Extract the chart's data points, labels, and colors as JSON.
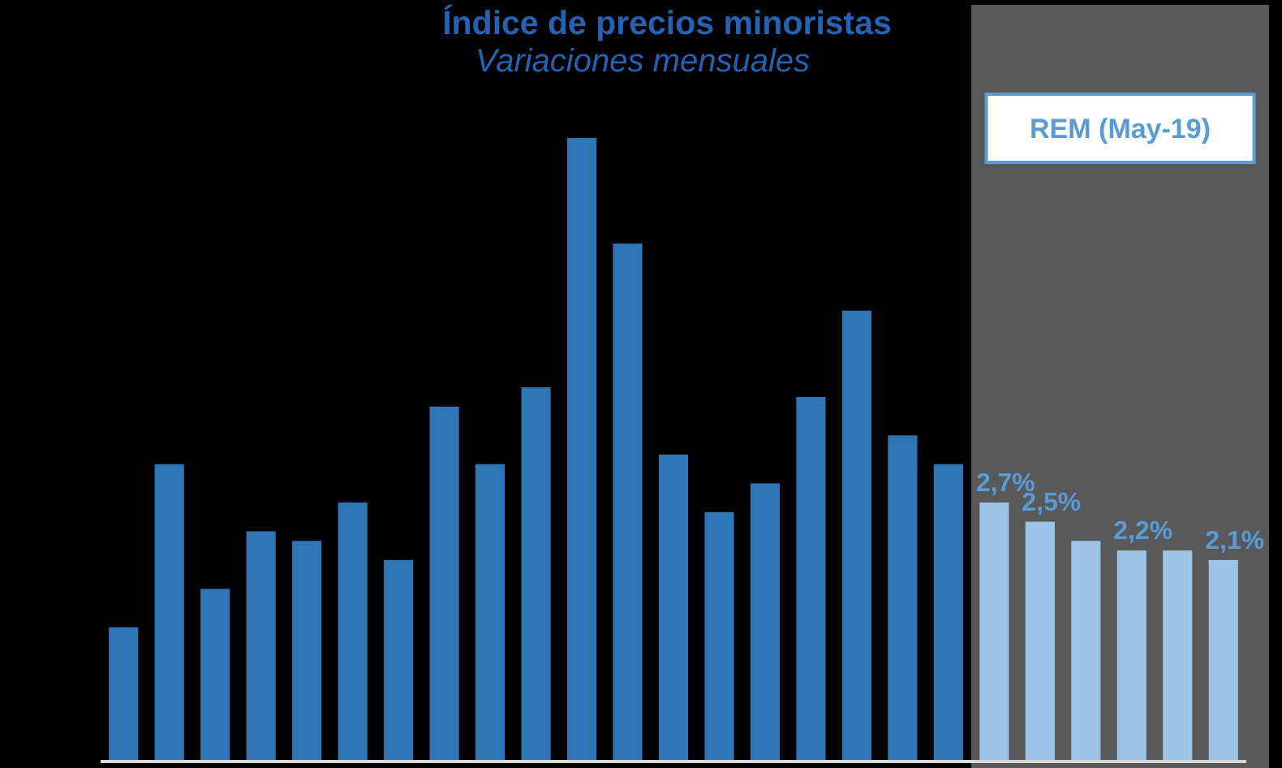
{
  "chart_data": {
    "type": "bar",
    "title": "Índice de precios minoristas",
    "subtitle": "Variaciones mensuales",
    "categories": [
      null,
      null,
      null,
      null,
      null,
      null,
      null,
      null,
      null,
      null,
      null,
      null,
      null,
      null,
      null,
      null,
      null,
      null,
      null,
      null,
      null,
      null,
      null,
      null,
      null
    ],
    "values": [
      1.4,
      3.1,
      1.8,
      2.4,
      2.3,
      2.7,
      2.1,
      3.7,
      3.1,
      3.9,
      6.5,
      5.4,
      3.2,
      2.6,
      2.9,
      3.8,
      4.7,
      3.4,
      3.1,
      2.7,
      2.5,
      2.3,
      2.2,
      2.2,
      2.1
    ],
    "colors": [
      "#2e75b6",
      "#2e75b6",
      "#2e75b6",
      "#2e75b6",
      "#2e75b6",
      "#2e75b6",
      "#2e75b6",
      "#2e75b6",
      "#2e75b6",
      "#2e75b6",
      "#2e75b6",
      "#2e75b6",
      "#2e75b6",
      "#2e75b6",
      "#2e75b6",
      "#2e75b6",
      "#2e75b6",
      "#2e75b6",
      "#2e75b6",
      "#9dc3e6",
      "#9dc3e6",
      "#9dc3e6",
      "#9dc3e6",
      "#9dc3e6",
      "#9dc3e6"
    ],
    "value_labels": [
      null,
      null,
      null,
      null,
      null,
      null,
      null,
      null,
      null,
      null,
      null,
      null,
      null,
      null,
      null,
      null,
      null,
      null,
      null,
      "2,7%",
      "2,5%",
      null,
      "2,2%",
      null,
      "2,1%"
    ],
    "annotations": [
      "REM (May-19)"
    ]
  }
}
